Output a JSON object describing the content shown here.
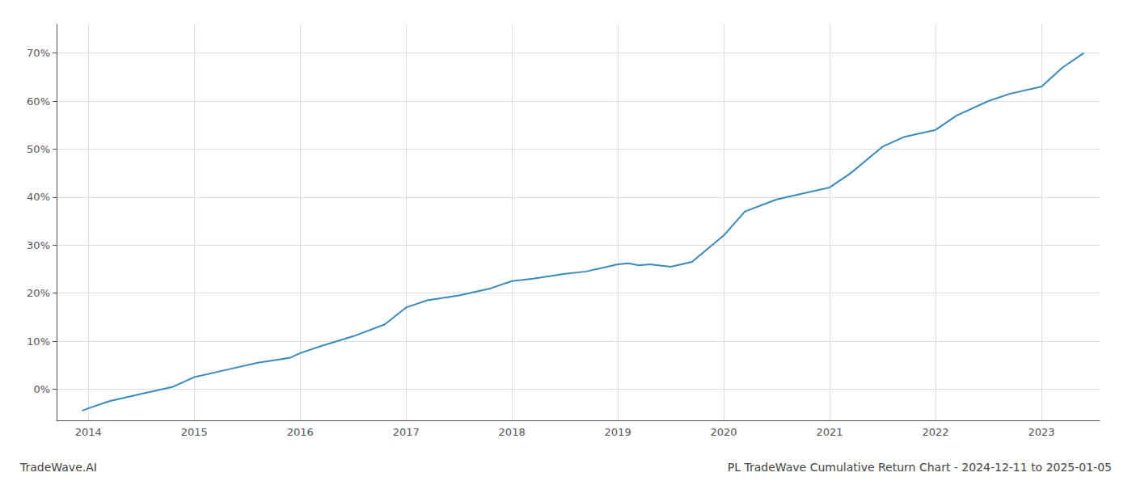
{
  "chart_data": {
    "type": "line",
    "title": "PL TradeWave Cumulative Return Chart - 2024-12-11 to 2025-01-05",
    "annotations": [
      "TradeWave.AI"
    ],
    "x": [
      2013.94,
      2014.0,
      2014.2,
      2014.5,
      2014.8,
      2015.0,
      2015.3,
      2015.6,
      2015.9,
      2016.0,
      2016.2,
      2016.5,
      2016.8,
      2017.0,
      2017.2,
      2017.5,
      2017.8,
      2018.0,
      2018.2,
      2018.5,
      2018.7,
      2018.9,
      2019.0,
      2019.1,
      2019.2,
      2019.3,
      2019.5,
      2019.7,
      2020.0,
      2020.2,
      2020.5,
      2020.7,
      2021.0,
      2021.2,
      2021.5,
      2021.7,
      2022.0,
      2022.2,
      2022.5,
      2022.7,
      2023.0,
      2023.2,
      2023.4
    ],
    "values": [
      -4.5,
      -4.0,
      -2.5,
      -1.0,
      0.5,
      2.5,
      4.0,
      5.5,
      6.5,
      7.5,
      9.0,
      11.0,
      13.5,
      17.0,
      18.5,
      19.5,
      21.0,
      22.5,
      23.0,
      24.0,
      24.5,
      25.5,
      26.0,
      26.2,
      25.8,
      26.0,
      25.5,
      26.5,
      32.0,
      37.0,
      39.5,
      40.5,
      42.0,
      45.0,
      50.5,
      52.5,
      54.0,
      57.0,
      60.0,
      61.5,
      63.0,
      67.0,
      70.0
    ],
    "color": "#3a8abf",
    "xlim": [
      2013.7,
      2023.55
    ],
    "ylim": [
      -6.5,
      76
    ],
    "xticks": [
      2014,
      2015,
      2016,
      2017,
      2018,
      2019,
      2020,
      2021,
      2022,
      2023
    ],
    "yticks": [
      {
        "value": 0,
        "label": "0%"
      },
      {
        "value": 10,
        "label": "10%"
      },
      {
        "value": 20,
        "label": "20%"
      },
      {
        "value": 30,
        "label": "30%"
      },
      {
        "value": 40,
        "label": "40%"
      },
      {
        "value": 50,
        "label": "50%"
      },
      {
        "value": 60,
        "label": "60%"
      },
      {
        "value": 70,
        "label": "70%"
      }
    ],
    "grid": true
  }
}
